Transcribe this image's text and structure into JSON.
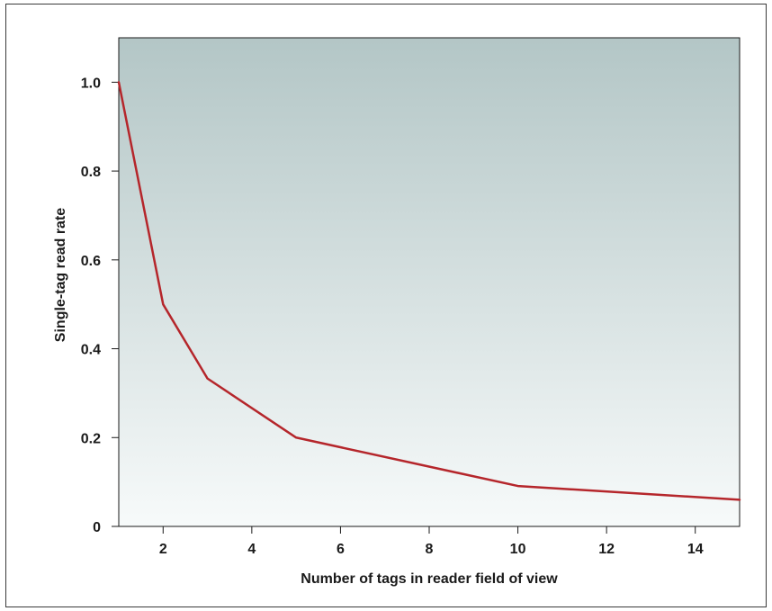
{
  "chart_data": {
    "type": "line",
    "title": "",
    "xlabel": "Number of tags in reader field of view",
    "ylabel": "Single-tag read rate",
    "xlim": [
      1,
      15
    ],
    "ylim": [
      0,
      1.1
    ],
    "x_ticks": [
      2,
      4,
      6,
      8,
      10,
      12,
      14
    ],
    "x_tick_labels": [
      "2",
      "4",
      "6",
      "8",
      "10",
      "12",
      "14"
    ],
    "y_ticks": [
      0,
      0.2,
      0.4,
      0.6,
      0.8,
      1.0
    ],
    "y_tick_labels": [
      "0",
      "0.2",
      "0.4",
      "0.6",
      "0.8",
      "1.0"
    ],
    "grid": false,
    "legend": "none",
    "background_gradient": [
      "#b3c6c6",
      "#f7fafa"
    ],
    "line_color": "#b5262b",
    "series": [
      {
        "x": [
          1,
          2,
          3,
          5,
          10,
          15
        ],
        "y": [
          1.0,
          0.5,
          0.333,
          0.2,
          0.091,
          0.06
        ]
      }
    ]
  }
}
